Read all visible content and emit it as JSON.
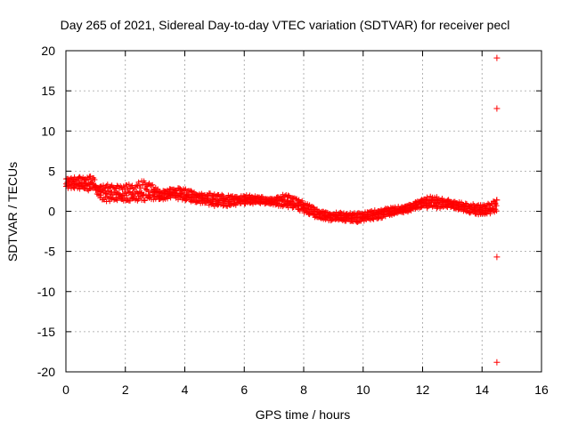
{
  "chart_data": {
    "type": "scatter",
    "title": "Day 265 of 2021, Sidereal Day-to-day VTEC variation (SDTVAR) for receiver pecl",
    "xlabel": "GPS time / hours",
    "ylabel": "SDTVAR / TECUs",
    "xlim": [
      0,
      16
    ],
    "ylim": [
      -20,
      20
    ],
    "xticks": [
      0,
      2,
      4,
      6,
      8,
      10,
      12,
      14,
      16
    ],
    "yticks": [
      -20,
      -15,
      -10,
      -5,
      0,
      5,
      10,
      15,
      20
    ],
    "grid": true,
    "legend": "none",
    "marker": "+",
    "series": [
      {
        "name": "SDTVAR",
        "color": "#ff0000",
        "band": [
          {
            "x": 0.0,
            "lo": 2.8,
            "hi": 4.2
          },
          {
            "x": 0.3,
            "lo": 2.7,
            "hi": 4.3
          },
          {
            "x": 0.6,
            "lo": 2.6,
            "hi": 4.4
          },
          {
            "x": 0.95,
            "lo": 2.5,
            "hi": 4.5
          },
          {
            "x": 1.05,
            "lo": 1.8,
            "hi": 3.2
          },
          {
            "x": 1.3,
            "lo": 1.2,
            "hi": 3.4
          },
          {
            "x": 1.8,
            "lo": 1.3,
            "hi": 3.2
          },
          {
            "x": 2.3,
            "lo": 1.0,
            "hi": 3.5
          },
          {
            "x": 2.6,
            "lo": 1.0,
            "hi": 3.9
          },
          {
            "x": 2.9,
            "lo": 1.3,
            "hi": 3.4
          },
          {
            "x": 3.2,
            "lo": 1.4,
            "hi": 2.6
          },
          {
            "x": 3.6,
            "lo": 1.6,
            "hi": 3.0
          },
          {
            "x": 4.0,
            "lo": 1.3,
            "hi": 2.8
          },
          {
            "x": 4.5,
            "lo": 1.0,
            "hi": 2.4
          },
          {
            "x": 5.0,
            "lo": 0.6,
            "hi": 2.2
          },
          {
            "x": 5.5,
            "lo": 0.6,
            "hi": 2.0
          },
          {
            "x": 6.0,
            "lo": 0.9,
            "hi": 2.1
          },
          {
            "x": 6.5,
            "lo": 0.9,
            "hi": 1.9
          },
          {
            "x": 7.0,
            "lo": 0.8,
            "hi": 1.6
          },
          {
            "x": 7.3,
            "lo": 0.4,
            "hi": 2.1
          },
          {
            "x": 7.6,
            "lo": 0.4,
            "hi": 2.0
          },
          {
            "x": 8.0,
            "lo": -0.2,
            "hi": 1.2
          },
          {
            "x": 8.4,
            "lo": -0.8,
            "hi": 0.4
          },
          {
            "x": 8.8,
            "lo": -1.2,
            "hi": 0.0
          },
          {
            "x": 9.3,
            "lo": -1.2,
            "hi": -0.1
          },
          {
            "x": 9.8,
            "lo": -1.4,
            "hi": -0.2
          },
          {
            "x": 10.2,
            "lo": -1.1,
            "hi": 0.0
          },
          {
            "x": 10.6,
            "lo": -0.9,
            "hi": 0.4
          },
          {
            "x": 11.0,
            "lo": -0.5,
            "hi": 0.5
          },
          {
            "x": 11.5,
            "lo": -0.1,
            "hi": 0.8
          },
          {
            "x": 12.0,
            "lo": 0.5,
            "hi": 1.6
          },
          {
            "x": 12.3,
            "lo": 0.2,
            "hi": 2.0
          },
          {
            "x": 12.6,
            "lo": 0.4,
            "hi": 1.8
          },
          {
            "x": 13.0,
            "lo": 0.4,
            "hi": 1.3
          },
          {
            "x": 13.5,
            "lo": -0.2,
            "hi": 1.0
          },
          {
            "x": 14.0,
            "lo": -0.5,
            "hi": 0.8
          },
          {
            "x": 14.3,
            "lo": -0.3,
            "hi": 1.1
          },
          {
            "x": 14.5,
            "lo": -0.2,
            "hi": 1.6
          }
        ],
        "outliers": [
          {
            "x": 14.5,
            "y": 19.1
          },
          {
            "x": 14.5,
            "y": 12.8
          },
          {
            "x": 14.5,
            "y": 1.4
          },
          {
            "x": 14.5,
            "y": -5.7
          },
          {
            "x": 14.5,
            "y": -18.8
          }
        ]
      }
    ]
  }
}
